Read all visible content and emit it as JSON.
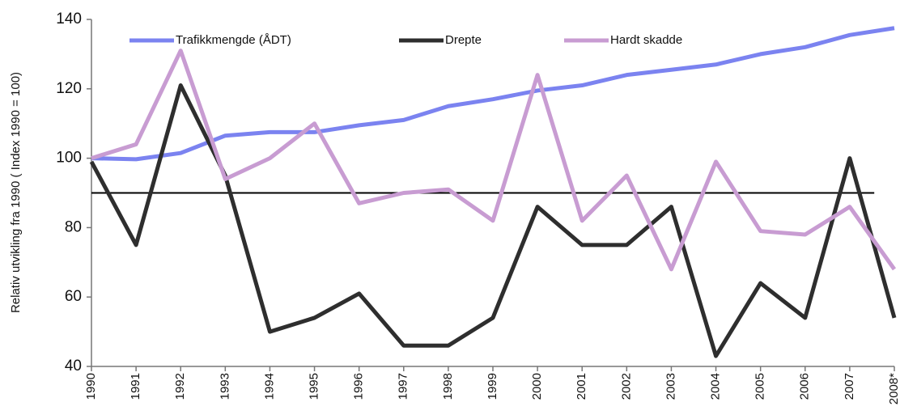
{
  "chart_data": {
    "type": "line",
    "y_label": "Relativ utvikling fra 1990 ( Index 1990 = 100)",
    "categories": [
      "1990",
      "1991",
      "1992",
      "1993",
      "1994",
      "1995",
      "1996",
      "1997",
      "1998",
      "1999",
      "2000",
      "2001",
      "2002",
      "2003",
      "2004",
      "2005",
      "2006",
      "2007",
      "2008*"
    ],
    "series": [
      {
        "name": "Trafikkmengde (ÅDT)",
        "color": "#7b83f0",
        "values": [
          100,
          99.7,
          101.5,
          106.5,
          107.5,
          107.5,
          109.5,
          111,
          115,
          117,
          119.5,
          121,
          124,
          125.5,
          127,
          130,
          132,
          135.5,
          137.5
        ]
      },
      {
        "name": "Drepte",
        "color": "#2e2e2e",
        "values": [
          99,
          75,
          121,
          95,
          50,
          54,
          61,
          46,
          46,
          54,
          86,
          75,
          75,
          86,
          43,
          64,
          54,
          100,
          54
        ]
      },
      {
        "name": "Hardt skadde",
        "color": "#c89cd2",
        "values": [
          100,
          104,
          131,
          94,
          100,
          110,
          87,
          90,
          91,
          82,
          124,
          82,
          95,
          68,
          99,
          79,
          78,
          86,
          68
        ]
      }
    ],
    "reference_line": {
      "value": 90,
      "color": "#000000"
    },
    "ylim": [
      40,
      140
    ],
    "yticks": [
      40,
      60,
      80,
      100,
      120,
      140
    ],
    "grid": false
  }
}
